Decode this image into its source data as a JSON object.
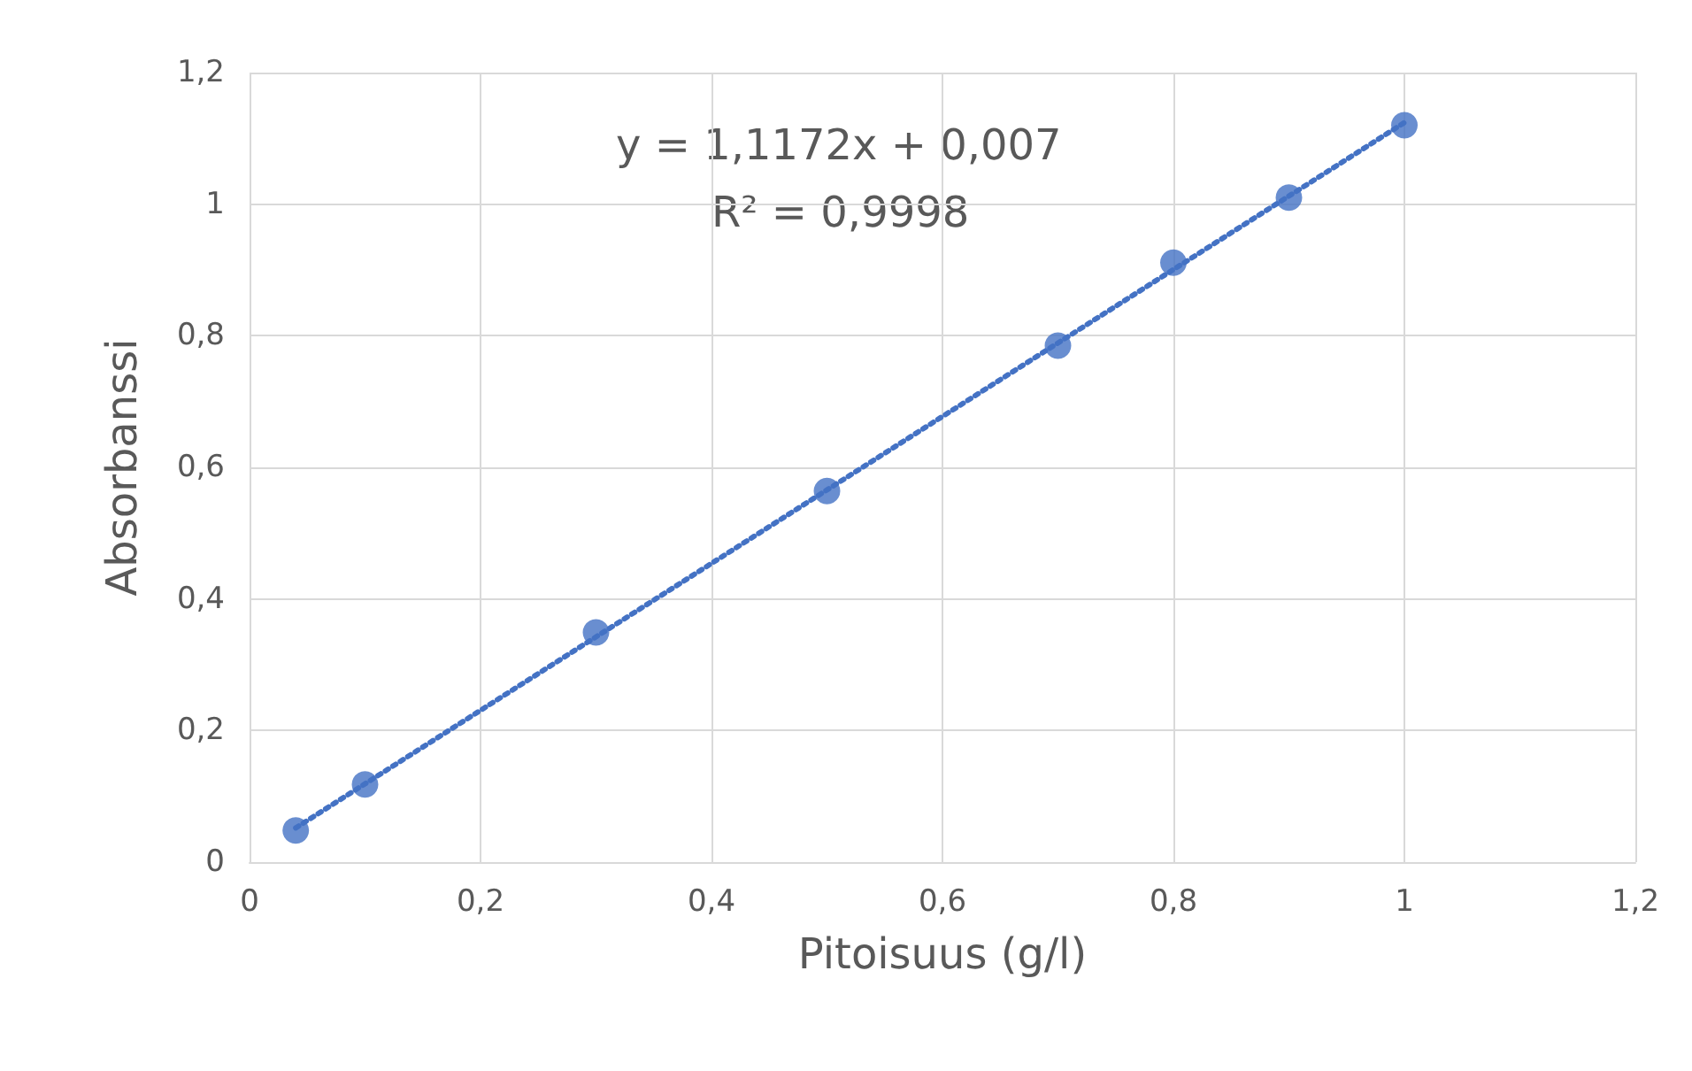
{
  "chart_data": {
    "type": "scatter",
    "xlabel": "Pitoisuus (g/l)",
    "ylabel": "Absorbanssi",
    "annotations": [
      "y = 1,1172x + 0,007",
      "R² = 0,9998"
    ],
    "series": [
      {
        "color": "#4472c4",
        "marker": "circle",
        "x": [
          0.04,
          0.1,
          0.3,
          0.5,
          0.7,
          0.8,
          0.9,
          1.0
        ],
        "values": [
          0.048,
          0.118,
          0.349,
          0.564,
          0.785,
          0.911,
          1.01,
          1.12
        ]
      },
      {
        "type": "line",
        "color": "#4472c4",
        "marker": "none",
        "line_style": "dotted",
        "x": [
          0.04,
          1.0
        ],
        "values": [
          0.052,
          1.124
        ]
      }
    ],
    "xlim": [
      0,
      1.2
    ],
    "xticks": [
      0,
      {
        "value": 0.2,
        "label": "0,2"
      },
      {
        "value": 0.4,
        "label": "0,4"
      },
      {
        "value": 0.6,
        "label": "0,6"
      },
      {
        "value": 0.8,
        "label": "0,8"
      },
      1,
      {
        "value": 1.2,
        "label": "1,2"
      }
    ],
    "ylim": [
      0,
      1.2
    ],
    "yticks": [
      0,
      {
        "value": 0.2,
        "label": "0,2"
      },
      {
        "value": 0.4,
        "label": "0,4"
      },
      {
        "value": 0.6,
        "label": "0,6"
      },
      {
        "value": 0.8,
        "label": "0,8"
      },
      1,
      {
        "value": 1.2,
        "label": "1,2"
      }
    ],
    "grid": true
  }
}
